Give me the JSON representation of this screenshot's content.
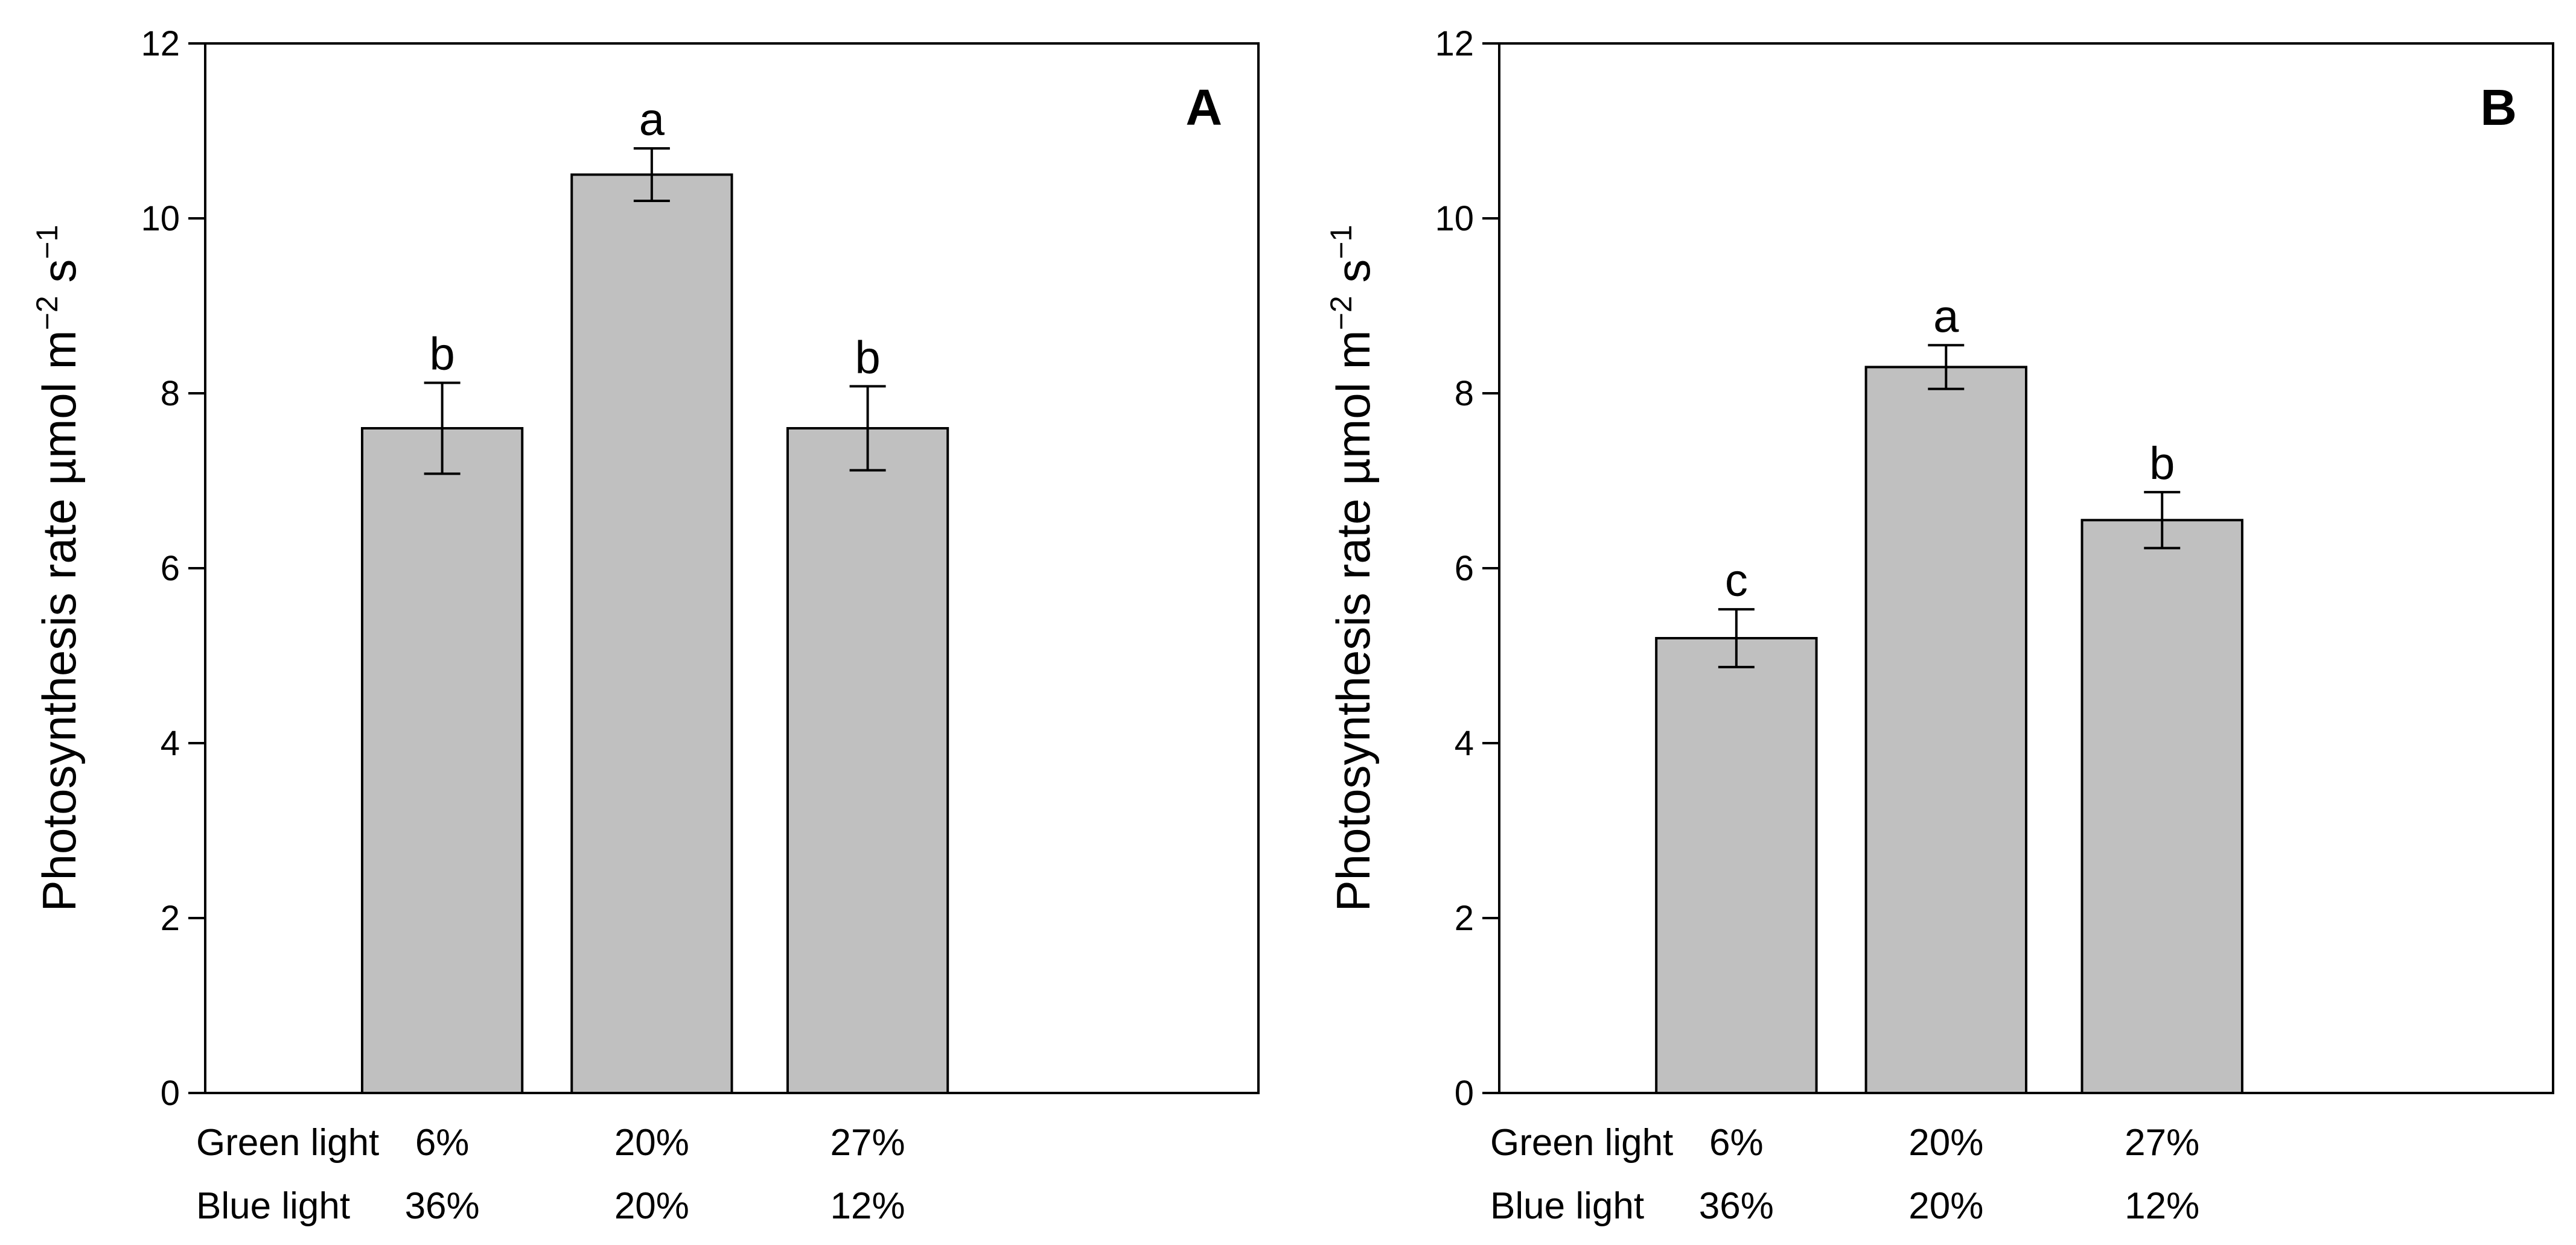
{
  "chart_data": [
    {
      "type": "bar",
      "panel_label": "A",
      "ylabel_main": "Photosynthesis rate µmol m",
      "ylabel_sup1": "−2",
      "ylabel_mid": " s",
      "ylabel_sup2": "−1",
      "ylim": [
        0,
        12
      ],
      "yticks": [
        0,
        2,
        4,
        6,
        8,
        10,
        12
      ],
      "categories": [
        "Green light 6% / Blue light 36%",
        "20% / 20%",
        "27% / 12%"
      ],
      "values": [
        7.6,
        10.5,
        7.6
      ],
      "errors": [
        0.52,
        0.3,
        0.48
      ],
      "significance": [
        "b",
        "a",
        "b"
      ],
      "xlabel_rows": [
        {
          "name": "Green light",
          "values": [
            "6%",
            "20%",
            "27%"
          ]
        },
        {
          "name": "Blue light",
          "values": [
            "36%",
            "20%",
            "12%"
          ]
        }
      ]
    },
    {
      "type": "bar",
      "panel_label": "B",
      "ylabel_main": "Photosynthesis rate µmol m",
      "ylabel_sup1": "−2",
      "ylabel_mid": " s",
      "ylabel_sup2": "−1",
      "ylim": [
        0,
        12
      ],
      "yticks": [
        0,
        2,
        4,
        6,
        8,
        10,
        12
      ],
      "categories": [
        "Green light 6% / Blue light 36%",
        "20% / 20%",
        "27% / 12%"
      ],
      "values": [
        5.2,
        8.3,
        6.55
      ],
      "errors": [
        0.33,
        0.25,
        0.32
      ],
      "significance": [
        "c",
        "a",
        "b"
      ],
      "xlabel_rows": [
        {
          "name": "Green light",
          "values": [
            "6%",
            "20%",
            "27%"
          ]
        },
        {
          "name": "Blue light",
          "values": [
            "36%",
            "20%",
            "12%"
          ]
        }
      ]
    }
  ],
  "style": {
    "bar_fill": "#c0c0c0",
    "bar_stroke": "#000000",
    "axis_color": "#000000",
    "background": "#ffffff"
  }
}
